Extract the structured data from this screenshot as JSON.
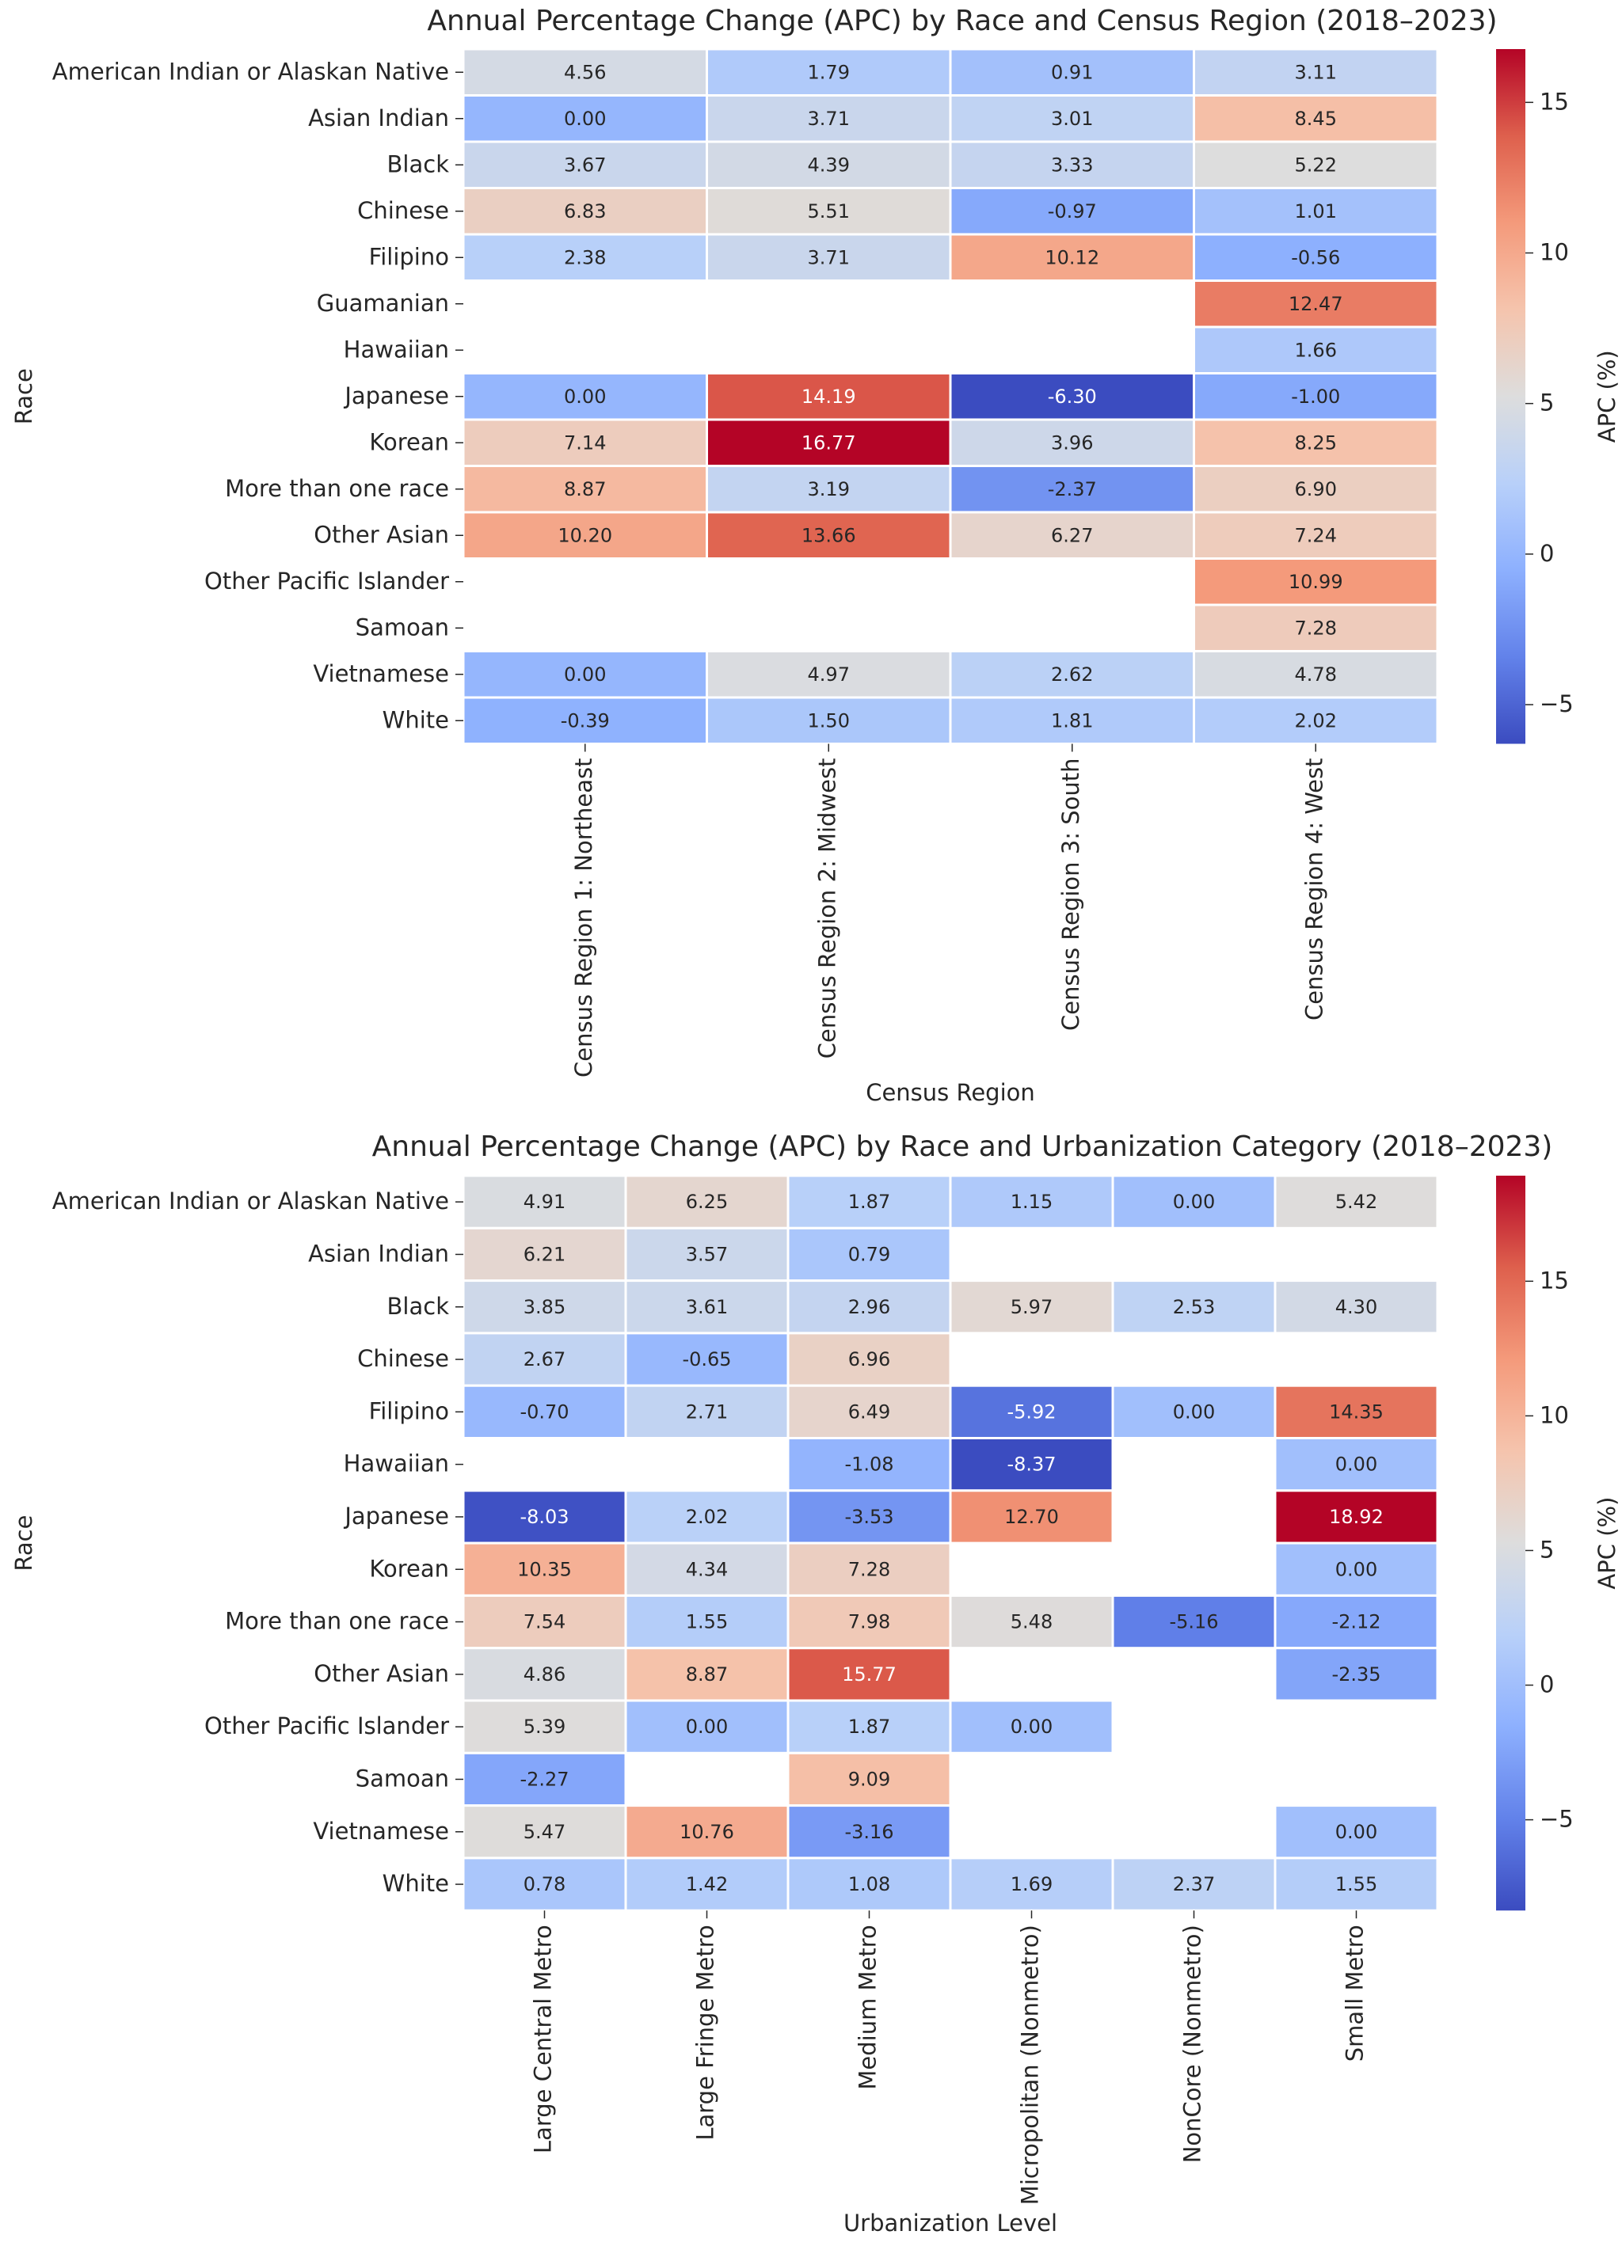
{
  "chart_data": [
    {
      "type": "heatmap",
      "title": "Annual Percentage Change (APC) by Race and Census Region (2018–2023)",
      "xlabel": "Census Region",
      "ylabel": "Race",
      "colorbar_label": "APC (%)",
      "colormap": "coolwarm",
      "vmin": -6.3,
      "vmax": 16.77,
      "colorbar_ticks": [
        -5,
        0,
        5,
        10,
        15
      ],
      "rows": [
        "American Indian or Alaskan Native",
        "Asian Indian",
        "Black",
        "Chinese",
        "Filipino",
        "Guamanian",
        "Hawaiian",
        "Japanese",
        "Korean",
        "More than one race",
        "Other Asian",
        "Other Pacific Islander",
        "Samoan",
        "Vietnamese",
        "White"
      ],
      "columns": [
        "Census Region 1: Northeast",
        "Census Region 2: Midwest",
        "Census Region 3: South",
        "Census Region 4: West"
      ],
      "values": [
        [
          4.56,
          1.79,
          0.91,
          3.11
        ],
        [
          0.0,
          3.71,
          3.01,
          8.45
        ],
        [
          3.67,
          4.39,
          3.33,
          5.22
        ],
        [
          6.83,
          5.51,
          -0.97,
          1.01
        ],
        [
          2.38,
          3.71,
          10.12,
          -0.56
        ],
        [
          null,
          null,
          null,
          12.47
        ],
        [
          null,
          null,
          null,
          1.66
        ],
        [
          0.0,
          14.19,
          -6.3,
          -1.0
        ],
        [
          7.14,
          16.77,
          3.96,
          8.25
        ],
        [
          8.87,
          3.19,
          -2.37,
          6.9
        ],
        [
          10.2,
          13.66,
          6.27,
          7.24
        ],
        [
          null,
          null,
          null,
          10.99
        ],
        [
          null,
          null,
          null,
          7.28
        ],
        [
          0.0,
          4.97,
          2.62,
          4.78
        ],
        [
          -0.39,
          1.5,
          1.81,
          2.02
        ]
      ]
    },
    {
      "type": "heatmap",
      "title": "Annual Percentage Change (APC) by Race and Urbanization Category (2018–2023)",
      "xlabel": "Urbanization Level",
      "ylabel": "Race",
      "colorbar_label": "APC (%)",
      "colormap": "coolwarm",
      "vmin": -8.37,
      "vmax": 18.92,
      "colorbar_ticks": [
        -5,
        0,
        5,
        10,
        15
      ],
      "rows": [
        "American Indian or Alaskan Native",
        "Asian Indian",
        "Black",
        "Chinese",
        "Filipino",
        "Hawaiian",
        "Japanese",
        "Korean",
        "More than one race",
        "Other Asian",
        "Other Pacific Islander",
        "Samoan",
        "Vietnamese",
        "White"
      ],
      "columns": [
        "Large Central Metro",
        "Large Fringe Metro",
        "Medium Metro",
        "Micropolitan (Nonmetro)",
        "NonCore (Nonmetro)",
        "Small Metro"
      ],
      "values": [
        [
          4.91,
          6.25,
          1.87,
          1.15,
          0.0,
          5.42
        ],
        [
          6.21,
          3.57,
          0.79,
          null,
          null,
          null
        ],
        [
          3.85,
          3.61,
          2.96,
          5.97,
          2.53,
          4.3
        ],
        [
          2.67,
          -0.65,
          6.96,
          null,
          null,
          null
        ],
        [
          -0.7,
          2.71,
          6.49,
          -5.92,
          0.0,
          14.35
        ],
        [
          null,
          null,
          -1.08,
          -8.37,
          null,
          0.0
        ],
        [
          -8.03,
          2.02,
          -3.53,
          12.7,
          null,
          18.92
        ],
        [
          10.35,
          4.34,
          7.28,
          null,
          null,
          0.0
        ],
        [
          7.54,
          1.55,
          7.98,
          5.48,
          -5.16,
          -2.12
        ],
        [
          4.86,
          8.87,
          15.77,
          null,
          null,
          -2.35
        ],
        [
          5.39,
          0.0,
          1.87,
          0.0,
          null,
          null
        ],
        [
          -2.27,
          null,
          9.09,
          null,
          null,
          null
        ],
        [
          5.47,
          10.76,
          -3.16,
          null,
          null,
          0.0
        ],
        [
          0.78,
          1.42,
          1.08,
          1.69,
          2.37,
          1.55
        ]
      ]
    }
  ]
}
